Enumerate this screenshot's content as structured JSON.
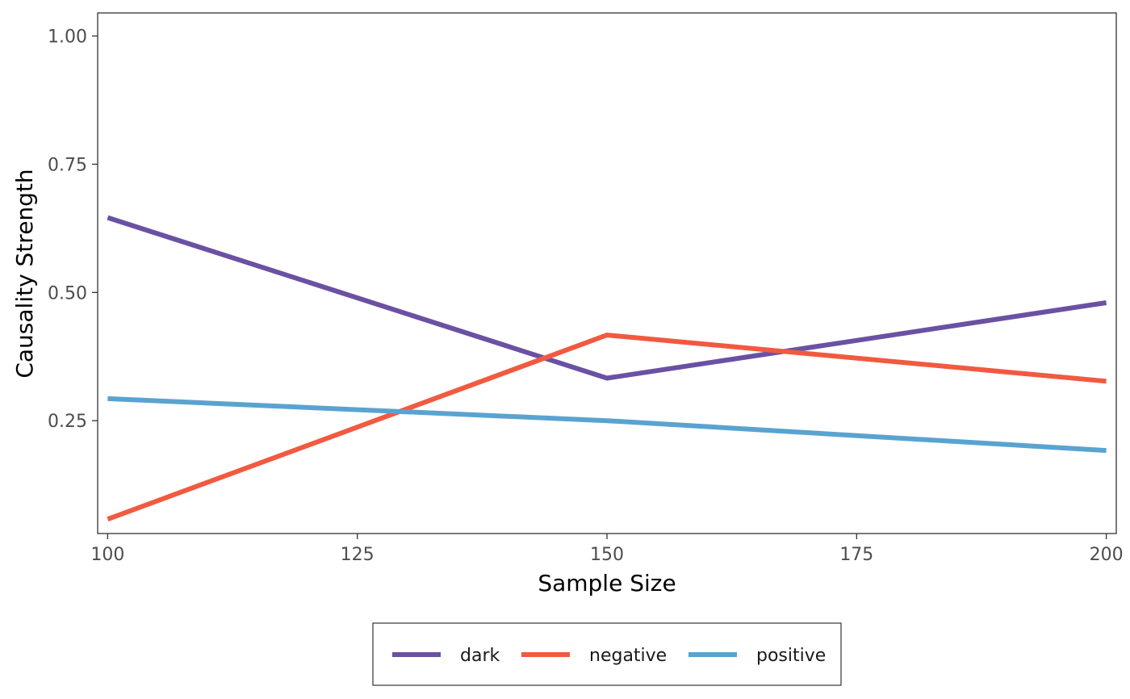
{
  "chart_data": {
    "type": "line",
    "xlabel": "Sample Size",
    "ylabel": "Causality Strength",
    "xlim": [
      99,
      201
    ],
    "ylim": [
      0.03,
      1.045
    ],
    "x_ticks": [
      100,
      125,
      150,
      175,
      200
    ],
    "x_tick_labels": [
      "100",
      "125",
      "150",
      "175",
      "200"
    ],
    "y_ticks": [
      0.25,
      0.5,
      0.75,
      1.0
    ],
    "y_tick_labels": [
      "0.25",
      "0.50",
      "0.75",
      "1.00"
    ],
    "grid": false,
    "legend_position": "bottom",
    "x": [
      100,
      150,
      200
    ],
    "series": [
      {
        "name": "dark",
        "color": "#6a51a3",
        "values": [
          0.646,
          0.333,
          0.48
        ]
      },
      {
        "name": "negative",
        "color": "#f15a40",
        "values": [
          0.058,
          0.417,
          0.327
        ]
      },
      {
        "name": "positive",
        "color": "#5aa3d0",
        "values": [
          0.293,
          0.25,
          0.192
        ]
      }
    ]
  }
}
